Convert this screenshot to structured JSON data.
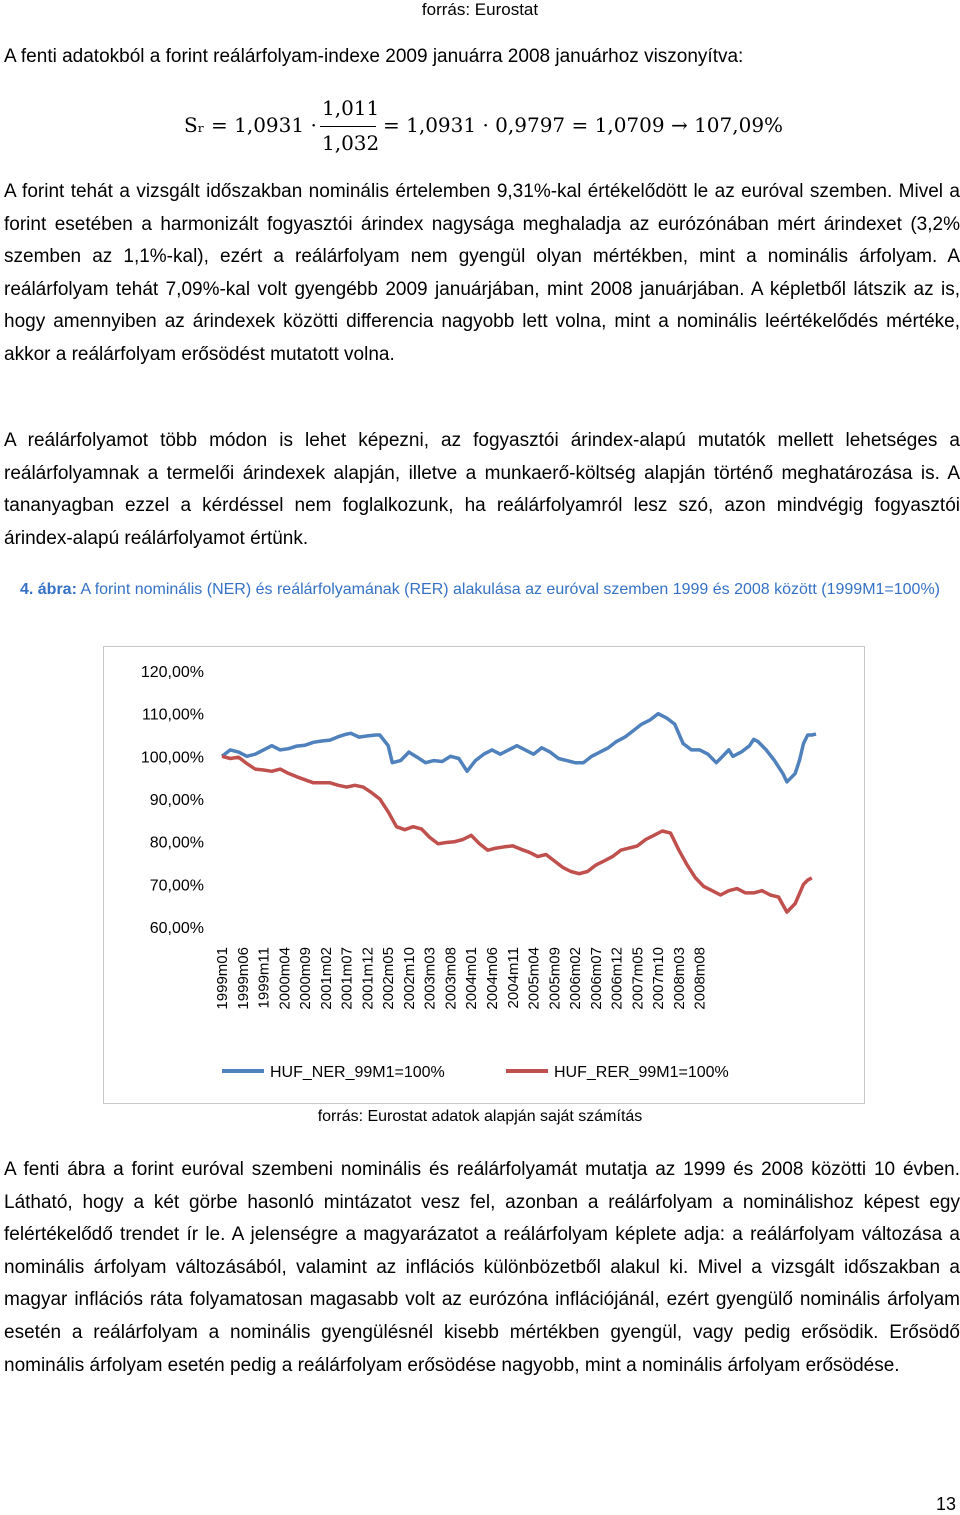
{
  "header": {
    "source": "forrás: Eurostat"
  },
  "intro": "A fenti adatokból a forint reálárfolyam-indexe 2009 januárra 2008 januárhoz viszonyítva:",
  "formula": {
    "lhs": "Sᵣ = 1,0931 ·",
    "numerator": "1,011",
    "denominator": "1,032",
    "rhs": "= 1,0931 · 0,9797 = 1,0709 → 107,09%"
  },
  "paragraphs": [
    "A forint tehát a vizsgált időszakban nominális értelemben 9,31%-kal értékelődött le az euróval szemben. Mivel a forint esetében a harmonizált fogyasztói árindex nagysága meghaladja az eurózónában mért árindexet (3,2% szemben az 1,1%-kal), ezért a reálárfolyam nem gyengül olyan mértékben, mint a nominális árfolyam. A reálárfolyam tehát 7,09%-kal volt gyengébb 2009 januárjában, mint 2008 januárjában. A képletből látszik az is, hogy amennyiben az árindexek közötti differencia nagyobb lett volna, mint a nominális leértékelődés mértéke, akkor a reálárfolyam erősödést mutatott volna.",
    "A reálárfolyamot több módon is lehet képezni, az fogyasztói árindex-alapú mutatók mellett lehetséges a reálárfolyamnak a termelői árindexek alapján, illetve a munkaerő-költség alapján történő meghatározása is. A tananyagban ezzel a kérdéssel nem foglalkozunk, ha reálárfolyamról lesz szó, azon mindvégig fogyasztói árindex-alapú reálárfolyamot értünk.",
    "A fenti ábra a forint euróval szembeni nominális és reálárfolyamát mutatja az 1999 és 2008 közötti 10 évben. Látható, hogy a két görbe hasonló mintázatot vesz fel, azonban a reálárfolyam a nominálishoz képest egy felértékelődő trendet ír le. A jelenségre a magyarázatot a reálárfolyam képlete adja: a reálárfolyam változása a nominális árfolyam változásából, valamint az inflációs különbözetből alakul ki. Mivel a vizsgált időszakban a magyar inflációs ráta folyamatosan magasabb volt az eurózóna inflációjánál, ezért gyengülő nominális árfolyam esetén a reálárfolyam a nominális gyengülésnél kisebb mértékben gyengül, vagy pedig erősödik. Erősödő nominális árfolyam esetén pedig a reálárfolyam erősödése nagyobb, mint a nominális árfolyam erősödése."
  ],
  "figure": {
    "caption_bold": "4. ábra:",
    "caption_rest": " A forint nominális (NER) és reálárfolyamának (RER) alakulása az euróval szemben 1999 és 2008 között (1999M1=100%)",
    "source": "forrás: Eurostat adatok alapján saját számítás"
  },
  "chart_data": {
    "type": "line",
    "title": "",
    "xlabel": "",
    "ylabel": "",
    "ylim": [
      60,
      120
    ],
    "y_ticks": [
      "120,00%",
      "110,00%",
      "100,00%",
      "90,00%",
      "80,00%",
      "70,00%",
      "60,00%"
    ],
    "y_tick_values": [
      120,
      110,
      100,
      90,
      80,
      70,
      60
    ],
    "x_tick_labels": [
      "1999m01",
      "1999m06",
      "1999m11",
      "2000m04",
      "2000m09",
      "2001m02",
      "2001m07",
      "2001m12",
      "2002m05",
      "2002m10",
      "2003m03",
      "2003m08",
      "2004m01",
      "2004m06",
      "2004m11",
      "2005m04",
      "2005m09",
      "2006m02",
      "2006m07",
      "2006m12",
      "2007m05",
      "2007m10",
      "2008m03",
      "2008m08"
    ],
    "x_step_months": 5,
    "legend_position": "bottom",
    "grid": "horizontal",
    "series": [
      {
        "name": "HUF_NER_99M1=100%",
        "color": "#4f81bd",
        "points": [
          [
            0,
            100
          ],
          [
            2,
            101.5
          ],
          [
            4,
            101
          ],
          [
            6,
            100
          ],
          [
            8,
            100.5
          ],
          [
            10,
            101.5
          ],
          [
            12,
            102.5
          ],
          [
            14,
            101.5
          ],
          [
            16,
            101.8
          ],
          [
            18,
            102.4
          ],
          [
            20,
            102.6
          ],
          [
            22,
            103.3
          ],
          [
            24,
            103.6
          ],
          [
            26,
            103.8
          ],
          [
            28,
            104.6
          ],
          [
            30,
            105.2
          ],
          [
            31,
            105.4
          ],
          [
            33,
            104.5
          ],
          [
            35,
            104.8
          ],
          [
            37,
            105.0
          ],
          [
            38,
            105.0
          ],
          [
            40,
            102.5
          ],
          [
            41,
            98.5
          ],
          [
            43,
            99.0
          ],
          [
            45,
            101.0
          ],
          [
            47,
            99.8
          ],
          [
            49,
            98.5
          ],
          [
            51,
            99.0
          ],
          [
            53,
            98.8
          ],
          [
            55,
            100.0
          ],
          [
            57,
            99.5
          ],
          [
            59,
            96.5
          ],
          [
            61,
            99.0
          ],
          [
            63,
            100.5
          ],
          [
            65,
            101.5
          ],
          [
            67,
            100.5
          ],
          [
            69,
            101.5
          ],
          [
            71,
            102.5
          ],
          [
            73,
            101.5
          ],
          [
            75,
            100.5
          ],
          [
            77,
            102.0
          ],
          [
            79,
            101.0
          ],
          [
            81,
            99.5
          ],
          [
            83,
            99.0
          ],
          [
            85,
            98.5
          ],
          [
            87,
            98.5
          ],
          [
            89,
            100.0
          ],
          [
            91,
            101.0
          ],
          [
            93,
            102.0
          ],
          [
            95,
            103.5
          ],
          [
            97,
            104.5
          ],
          [
            99,
            106.0
          ],
          [
            101,
            107.5
          ],
          [
            103,
            108.5
          ],
          [
            105,
            110.0
          ],
          [
            107,
            109.0
          ],
          [
            109,
            107.5
          ],
          [
            111,
            103.0
          ],
          [
            113,
            101.5
          ],
          [
            115,
            101.5
          ],
          [
            117,
            100.5
          ],
          [
            119,
            98.5
          ],
          [
            120,
            99.5
          ],
          [
            122,
            101.5
          ],
          [
            123,
            100.0
          ],
          [
            125,
            101.0
          ],
          [
            127,
            102.5
          ],
          [
            128,
            104.0
          ],
          [
            129,
            103.5
          ],
          [
            131,
            101.5
          ],
          [
            133,
            99.0
          ],
          [
            135,
            96.0
          ],
          [
            136,
            94.0
          ],
          [
            137,
            95.0
          ],
          [
            138,
            96.0
          ],
          [
            139,
            99.0
          ],
          [
            140,
            103.0
          ],
          [
            141,
            105.0
          ],
          [
            142,
            105.0
          ],
          [
            143,
            105.2
          ]
        ]
      },
      {
        "name": "HUF_RER_99M1=100%",
        "color": "#c0504d",
        "points": [
          [
            0,
            100
          ],
          [
            2,
            99.5
          ],
          [
            4,
            99.8
          ],
          [
            6,
            98.3
          ],
          [
            8,
            97.0
          ],
          [
            10,
            96.8
          ],
          [
            12,
            96.5
          ],
          [
            14,
            97.0
          ],
          [
            16,
            96.0
          ],
          [
            18,
            95.2
          ],
          [
            20,
            94.5
          ],
          [
            22,
            93.8
          ],
          [
            24,
            93.8
          ],
          [
            26,
            93.8
          ],
          [
            28,
            93.2
          ],
          [
            30,
            92.8
          ],
          [
            32,
            93.2
          ],
          [
            34,
            92.8
          ],
          [
            36,
            91.5
          ],
          [
            38,
            90.0
          ],
          [
            40,
            87.0
          ],
          [
            42,
            83.5
          ],
          [
            44,
            82.8
          ],
          [
            46,
            83.5
          ],
          [
            48,
            83.0
          ],
          [
            50,
            81.0
          ],
          [
            52,
            79.5
          ],
          [
            54,
            79.8
          ],
          [
            56,
            80.0
          ],
          [
            58,
            80.5
          ],
          [
            60,
            81.5
          ],
          [
            62,
            79.5
          ],
          [
            64,
            78.0
          ],
          [
            66,
            78.5
          ],
          [
            68,
            78.8
          ],
          [
            70,
            79.0
          ],
          [
            72,
            78.2
          ],
          [
            74,
            77.5
          ],
          [
            76,
            76.5
          ],
          [
            78,
            77.0
          ],
          [
            80,
            75.5
          ],
          [
            82,
            74.0
          ],
          [
            84,
            73.0
          ],
          [
            86,
            72.5
          ],
          [
            88,
            73.0
          ],
          [
            90,
            74.5
          ],
          [
            92,
            75.5
          ],
          [
            94,
            76.5
          ],
          [
            96,
            78.0
          ],
          [
            98,
            78.5
          ],
          [
            100,
            79.0
          ],
          [
            102,
            80.5
          ],
          [
            104,
            81.5
          ],
          [
            106,
            82.5
          ],
          [
            108,
            82.0
          ],
          [
            110,
            78.0
          ],
          [
            112,
            74.5
          ],
          [
            114,
            71.5
          ],
          [
            116,
            69.5
          ],
          [
            118,
            68.5
          ],
          [
            120,
            67.5
          ],
          [
            122,
            68.5
          ],
          [
            124,
            69.0
          ],
          [
            126,
            68.0
          ],
          [
            128,
            68.0
          ],
          [
            130,
            68.5
          ],
          [
            132,
            67.5
          ],
          [
            134,
            67.0
          ],
          [
            136,
            63.5
          ],
          [
            138,
            65.5
          ],
          [
            140,
            70.0
          ],
          [
            141,
            71.0
          ],
          [
            142,
            71.5
          ]
        ]
      }
    ]
  },
  "page_number": "13"
}
